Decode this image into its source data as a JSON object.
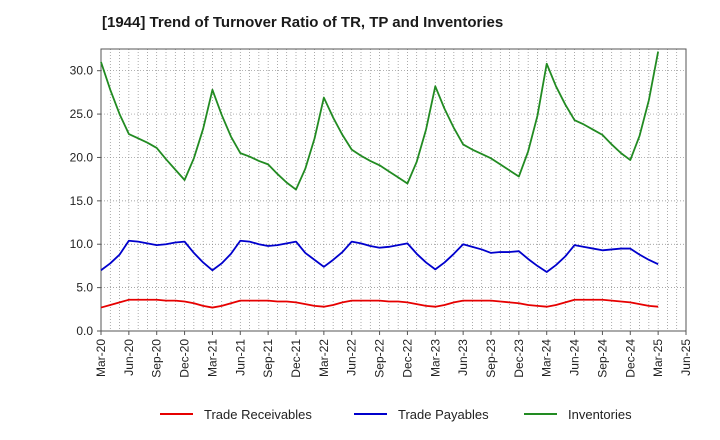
{
  "chart_data": {
    "type": "line",
    "title": "[1944]  Trend of Turnover Ratio of TR, TP and Inventories",
    "xlabel": "",
    "ylabel": "",
    "ylim": [
      0,
      32.5
    ],
    "yticks": [
      "0.0",
      "5.0",
      "10.0",
      "15.0",
      "20.0",
      "25.0",
      "30.0"
    ],
    "grid": true,
    "legend_position": "bottom",
    "x_tick_labels": [
      "Mar-20",
      "Jun-20",
      "Sep-20",
      "Dec-20",
      "Mar-21",
      "Jun-21",
      "Sep-21",
      "Dec-21",
      "Mar-22",
      "Jun-22",
      "Sep-22",
      "Dec-22",
      "Mar-23",
      "Jun-23",
      "Sep-23",
      "Dec-23",
      "Mar-24",
      "Jun-24",
      "Sep-24",
      "Dec-24",
      "Mar-25",
      "Jun-25"
    ],
    "x": [
      "Mar-20",
      "Apr-20",
      "May-20",
      "Jun-20",
      "Jul-20",
      "Aug-20",
      "Sep-20",
      "Oct-20",
      "Nov-20",
      "Dec-20",
      "Jan-21",
      "Feb-21",
      "Mar-21",
      "Apr-21",
      "May-21",
      "Jun-21",
      "Jul-21",
      "Aug-21",
      "Sep-21",
      "Oct-21",
      "Nov-21",
      "Dec-21",
      "Jan-22",
      "Feb-22",
      "Mar-22",
      "Apr-22",
      "May-22",
      "Jun-22",
      "Jul-22",
      "Aug-22",
      "Sep-22",
      "Oct-22",
      "Nov-22",
      "Dec-22",
      "Jan-23",
      "Feb-23",
      "Mar-23",
      "Apr-23",
      "May-23",
      "Jun-23",
      "Jul-23",
      "Aug-23",
      "Sep-23",
      "Oct-23",
      "Nov-23",
      "Dec-23",
      "Jan-24",
      "Feb-24",
      "Mar-24",
      "Apr-24",
      "May-24",
      "Jun-24",
      "Jul-24",
      "Aug-24",
      "Sep-24",
      "Oct-24",
      "Nov-24",
      "Dec-24",
      "Jan-25",
      "Feb-25",
      "Mar-25"
    ],
    "series": [
      {
        "name": "Trade Receivables",
        "color": "#e60000",
        "values": [
          2.7,
          3.0,
          3.3,
          3.6,
          3.6,
          3.6,
          3.6,
          3.5,
          3.5,
          3.4,
          3.2,
          2.9,
          2.7,
          2.9,
          3.2,
          3.5,
          3.5,
          3.5,
          3.5,
          3.4,
          3.4,
          3.3,
          3.1,
          2.9,
          2.8,
          3.0,
          3.3,
          3.5,
          3.5,
          3.5,
          3.5,
          3.4,
          3.4,
          3.3,
          3.1,
          2.9,
          2.8,
          3.0,
          3.3,
          3.5,
          3.5,
          3.5,
          3.5,
          3.4,
          3.3,
          3.2,
          3.0,
          2.9,
          2.8,
          3.0,
          3.3,
          3.6,
          3.6,
          3.6,
          3.6,
          3.5,
          3.4,
          3.3,
          3.1,
          2.9,
          2.8
        ]
      },
      {
        "name": "Trade Payables",
        "color": "#0000cc",
        "values": [
          7.0,
          7.8,
          8.8,
          10.4,
          10.3,
          10.1,
          9.9,
          10.0,
          10.2,
          10.3,
          9.0,
          7.9,
          7.0,
          7.8,
          8.9,
          10.4,
          10.3,
          10.0,
          9.8,
          9.9,
          10.1,
          10.3,
          9.0,
          8.2,
          7.4,
          8.2,
          9.1,
          10.3,
          10.1,
          9.8,
          9.6,
          9.7,
          9.9,
          10.1,
          8.9,
          7.9,
          7.1,
          7.9,
          8.9,
          10.0,
          9.7,
          9.4,
          9.0,
          9.1,
          9.1,
          9.2,
          8.3,
          7.5,
          6.8,
          7.6,
          8.6,
          9.9,
          9.7,
          9.5,
          9.3,
          9.4,
          9.5,
          9.5,
          8.8,
          8.2,
          7.7
        ]
      },
      {
        "name": "Inventories",
        "color": "#228b22",
        "values": [
          31.0,
          27.8,
          25.0,
          22.7,
          22.2,
          21.7,
          21.1,
          19.8,
          18.6,
          17.4,
          19.9,
          23.3,
          27.8,
          24.9,
          22.4,
          20.5,
          20.1,
          19.6,
          19.2,
          18.1,
          17.1,
          16.3,
          18.7,
          22.2,
          26.9,
          24.6,
          22.6,
          20.9,
          20.2,
          19.6,
          19.1,
          18.4,
          17.7,
          17.0,
          19.5,
          23.2,
          28.2,
          25.6,
          23.4,
          21.5,
          20.9,
          20.4,
          19.9,
          19.2,
          18.5,
          17.8,
          20.7,
          24.8,
          30.8,
          28.2,
          26.1,
          24.3,
          23.8,
          23.2,
          22.6,
          21.5,
          20.5,
          19.7,
          22.5,
          26.6,
          32.2
        ]
      }
    ]
  }
}
